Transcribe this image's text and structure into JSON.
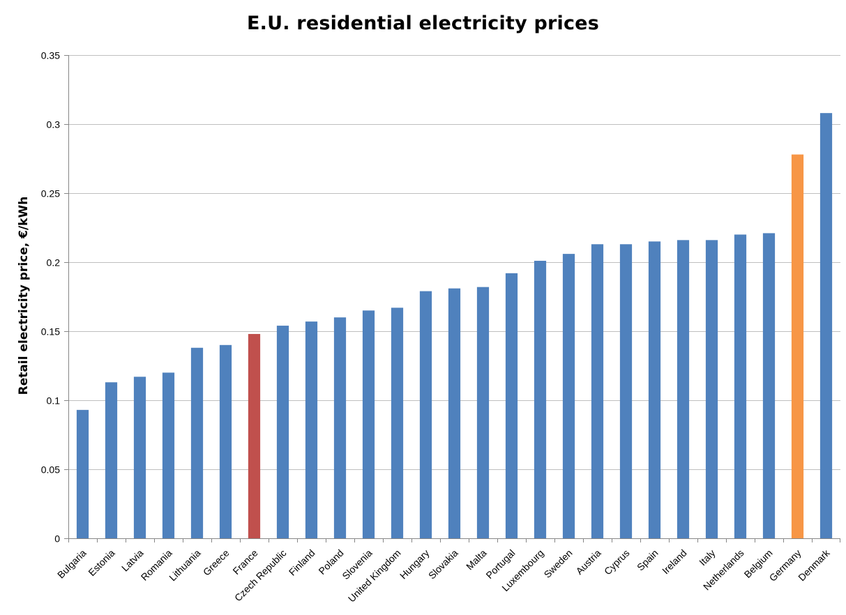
{
  "colors": {
    "default_bar": "#4F81BD",
    "highlight_france": "#C0504D",
    "highlight_germany": "#F79646",
    "gridline": "#BFBFBF",
    "axis": "#868686"
  },
  "chart_data": {
    "type": "bar",
    "title": "E.U. residential electricity prices",
    "xlabel": "",
    "ylabel": "Retail electricity price, €/kWh",
    "ylim": [
      0,
      0.35
    ],
    "yticks": [
      0,
      0.05,
      0.1,
      0.15,
      0.2,
      0.25,
      0.3,
      0.35
    ],
    "ytick_labels": [
      "0",
      "0.05",
      "0.1",
      "0.15",
      "0.2",
      "0.25",
      "0.3",
      "0.35"
    ],
    "grid": true,
    "legend": "none",
    "categories": [
      "Bulgaria",
      "Estonia",
      "Latvia",
      "Romania",
      "Lithuania",
      "Greece",
      "France",
      "Czech Republic",
      "Finland",
      "Poland",
      "Slovenia",
      "United Kingdom",
      "Hungary",
      "Slovakia",
      "Malta",
      "Portugal",
      "Luxembourg",
      "Sweden",
      "Austria",
      "Cyprus",
      "Spain",
      "Ireland",
      "Italy",
      "Netherlands",
      "Belgium",
      "Germany",
      "Denmark"
    ],
    "values": [
      0.093,
      0.113,
      0.117,
      0.12,
      0.138,
      0.14,
      0.148,
      0.154,
      0.157,
      0.16,
      0.165,
      0.167,
      0.179,
      0.181,
      0.182,
      0.192,
      0.201,
      0.206,
      0.213,
      0.213,
      0.215,
      0.216,
      0.216,
      0.22,
      0.221,
      0.278,
      0.308
    ],
    "bar_colors": [
      "#4F81BD",
      "#4F81BD",
      "#4F81BD",
      "#4F81BD",
      "#4F81BD",
      "#4F81BD",
      "#C0504D",
      "#4F81BD",
      "#4F81BD",
      "#4F81BD",
      "#4F81BD",
      "#4F81BD",
      "#4F81BD",
      "#4F81BD",
      "#4F81BD",
      "#4F81BD",
      "#4F81BD",
      "#4F81BD",
      "#4F81BD",
      "#4F81BD",
      "#4F81BD",
      "#4F81BD",
      "#4F81BD",
      "#4F81BD",
      "#4F81BD",
      "#F79646",
      "#4F81BD"
    ]
  }
}
